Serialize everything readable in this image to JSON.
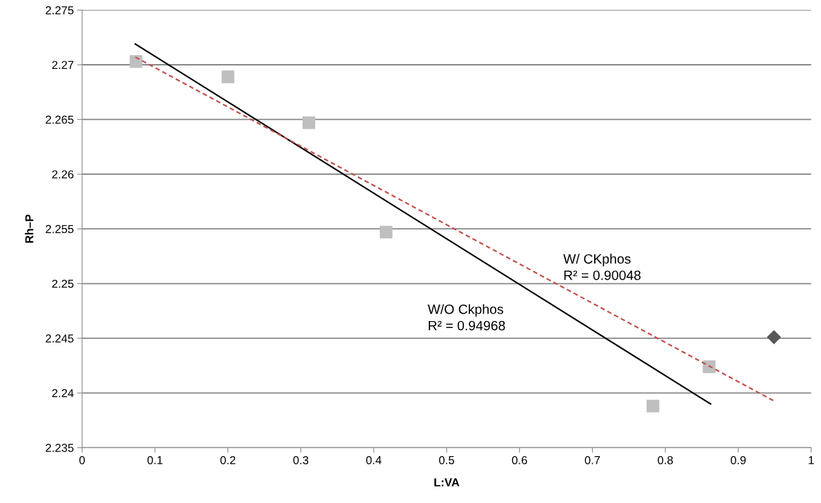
{
  "chart_data": {
    "type": "scatter",
    "xlabel": "L:VA",
    "ylabel": "Rh–P",
    "xlim": [
      0,
      1
    ],
    "xticks": [
      0,
      0.1,
      0.2,
      0.3,
      0.4,
      0.5,
      0.6,
      0.7,
      0.8,
      0.9,
      1
    ],
    "ylim": [
      2.235,
      2.275
    ],
    "yticks": [
      2.235,
      2.24,
      2.245,
      2.25,
      2.255,
      2.26,
      2.265,
      2.27,
      2.275
    ],
    "grid": "y",
    "series": [
      {
        "marker": "square",
        "color": "#bfbfbf",
        "x": [
          0.074,
          0.2,
          0.311,
          0.417,
          0.783,
          0.86
        ],
        "values": [
          2.2703,
          2.2689,
          2.2647,
          2.2547,
          2.2388,
          2.2424
        ]
      },
      {
        "marker": "diamond",
        "color": "#595959",
        "x": [
          0.949
        ],
        "values": [
          2.2451
        ]
      },
      {
        "type": "line",
        "marker": "none",
        "line_style": "solid",
        "color": "#000000",
        "x": [
          0.073,
          0.862
        ],
        "values": [
          2.2719,
          2.239
        ]
      },
      {
        "type": "line",
        "marker": "none",
        "line_style": "dashed",
        "color": "#c0504d",
        "x": [
          0.073,
          0.951
        ],
        "values": [
          2.2707,
          2.2392
        ]
      }
    ],
    "annotations": [
      "W/ CKphos\nR² = 0.90048",
      "W/O Ckphos\nR² = 0.94968"
    ]
  }
}
